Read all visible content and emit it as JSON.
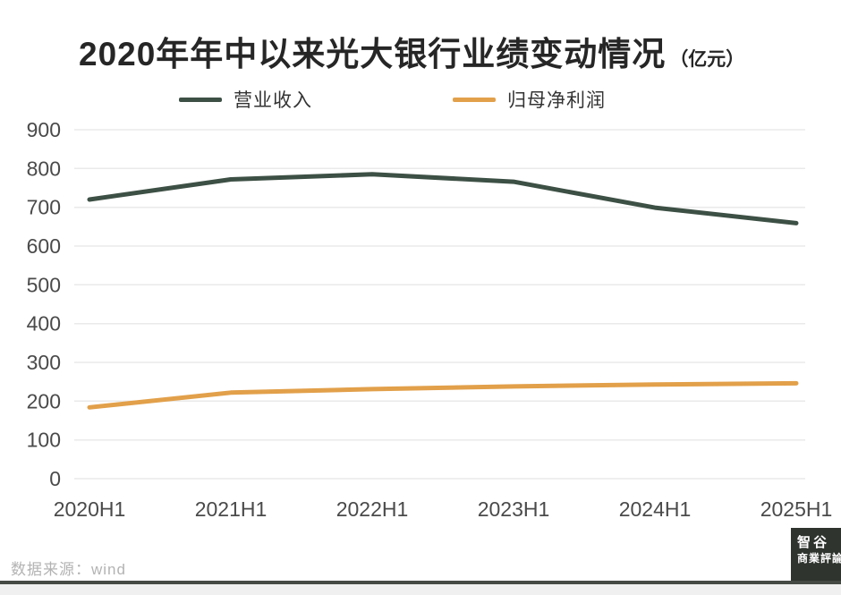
{
  "title": {
    "text": "2020年年中以来光大银行业绩变动情况",
    "unit": "（亿元）"
  },
  "legend": [
    {
      "label": "营业收入",
      "color": "#3d5045"
    },
    {
      "label": "归母净利润",
      "color": "#e2a04a"
    }
  ],
  "chart_data": {
    "type": "line",
    "title": "2020年年中以来光大银行业绩变动情况（亿元）",
    "categories": [
      "2020H1",
      "2021H1",
      "2022H1",
      "2023H1",
      "2024H1",
      "2025H1"
    ],
    "series": [
      {
        "name": "营业收入",
        "color": "#3d5045",
        "values": [
          720,
          772,
          785,
          766,
          699,
          659
        ]
      },
      {
        "name": "归母净利润",
        "color": "#e2a04a",
        "values": [
          184,
          222,
          231,
          238,
          243,
          246
        ]
      }
    ],
    "xlabel": "",
    "ylabel": "",
    "ylim": [
      0,
      900
    ],
    "yticks": [
      0,
      100,
      200,
      300,
      400,
      500,
      600,
      700,
      800,
      900
    ],
    "grid": true,
    "legend_position": "top"
  },
  "footer": {
    "source": "数据来源：wind"
  },
  "logo": {
    "line1": "智谷",
    "line2": "商業評論"
  },
  "colors": {
    "grid": "#eaeaea",
    "axis_text": "#4a4a4a",
    "title_text": "#262626",
    "revenue_line": "#3d5045",
    "profit_line": "#e2a04a",
    "bottom_rule": "#454a45",
    "logo_bg": "#2f342e"
  }
}
